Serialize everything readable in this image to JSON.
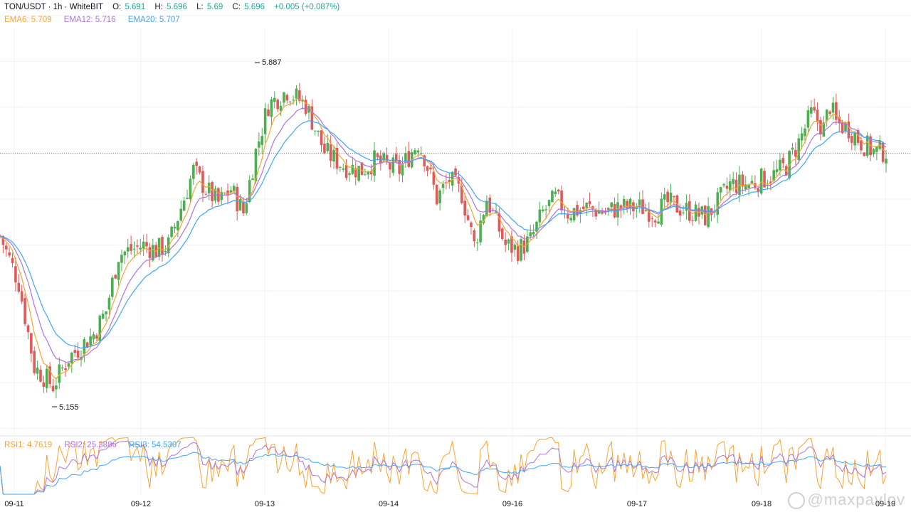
{
  "header": {
    "symbol": "TON/USDT · 1h · WhiteBIT",
    "open_label": "O:",
    "open": "5.691",
    "high_label": "H:",
    "high": "5.696",
    "low_label": "L:",
    "low": "5.69",
    "close_label": "C:",
    "close": "5.696",
    "change": "+0.005 (+0.087%)"
  },
  "ema_legend": {
    "ema6": "EMA6: 5.709",
    "ema12": "EMA12: 5.716",
    "ema20": "EMA20: 5.707"
  },
  "rsi_legend": {
    "rsi1": "RSI1: 4.7619",
    "rsi2": "RSI2: 25.3886",
    "rsi3": "RSI3: 54.5307"
  },
  "watermark": "@maxpavlov",
  "colors": {
    "up": "#26a69a",
    "down": "#ef5350",
    "up_candle": "#4caf50",
    "down_candle": "#e05a5a",
    "ema6": "#f7a531",
    "ema12": "#b173d6",
    "ema20": "#42a5f5",
    "rsi1": "#f7a531",
    "rsi2": "#b173d6",
    "rsi3": "#42a5f5"
  },
  "chart_data": {
    "type": "candlestick",
    "x_tick_labels": [
      "09-11",
      "09-12",
      "09-13",
      "09-14",
      "09-16",
      "09-17",
      "09-18",
      "09-19"
    ],
    "annotations": {
      "max": "5.887",
      "min": "5.155"
    },
    "last_price": 5.696,
    "y_range": [
      5.08,
      6.04
    ],
    "close_path": [
      [
        0,
        5.52
      ],
      [
        6,
        5.42
      ],
      [
        11,
        5.24
      ],
      [
        17,
        5.2
      ],
      [
        22,
        5.26
      ],
      [
        30,
        5.31
      ],
      [
        34,
        5.36
      ],
      [
        38,
        5.48
      ],
      [
        46,
        5.5
      ],
      [
        50,
        5.49
      ],
      [
        54,
        5.5
      ],
      [
        62,
        5.66
      ],
      [
        66,
        5.62
      ],
      [
        70,
        5.59
      ],
      [
        74,
        5.62
      ],
      [
        78,
        5.57
      ],
      [
        82,
        5.7
      ],
      [
        86,
        5.8
      ],
      [
        92,
        5.83
      ],
      [
        98,
        5.8
      ],
      [
        104,
        5.7
      ],
      [
        110,
        5.67
      ],
      [
        116,
        5.66
      ],
      [
        120,
        5.68
      ],
      [
        124,
        5.67
      ],
      [
        128,
        5.66
      ],
      [
        134,
        5.72
      ],
      [
        136,
        5.69
      ],
      [
        140,
        5.6
      ],
      [
        144,
        5.64
      ],
      [
        148,
        5.61
      ],
      [
        152,
        5.5
      ],
      [
        156,
        5.6
      ],
      [
        162,
        5.5
      ],
      [
        166,
        5.49
      ],
      [
        170,
        5.51
      ],
      [
        174,
        5.57
      ],
      [
        178,
        5.6
      ],
      [
        182,
        5.57
      ],
      [
        188,
        5.58
      ],
      [
        194,
        5.57
      ],
      [
        198,
        5.58
      ],
      [
        206,
        5.58
      ],
      [
        210,
        5.57
      ],
      [
        214,
        5.59
      ],
      [
        218,
        5.58
      ],
      [
        222,
        5.57
      ],
      [
        226,
        5.56
      ],
      [
        230,
        5.59
      ],
      [
        234,
        5.63
      ],
      [
        240,
        5.63
      ],
      [
        244,
        5.64
      ],
      [
        248,
        5.65
      ],
      [
        252,
        5.67
      ],
      [
        256,
        5.72
      ],
      [
        260,
        5.78
      ],
      [
        264,
        5.75
      ],
      [
        266,
        5.8
      ],
      [
        268,
        5.76
      ],
      [
        272,
        5.75
      ],
      [
        276,
        5.72
      ],
      [
        280,
        5.7
      ],
      [
        284,
        5.7
      ]
    ],
    "ema6": [],
    "ema12": [],
    "ema20": []
  }
}
